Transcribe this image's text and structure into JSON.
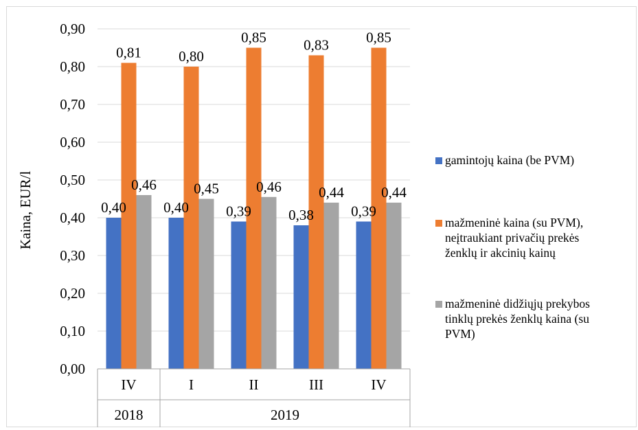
{
  "chart_data": {
    "type": "bar",
    "ylabel": "Kaina, EUR/l",
    "ylim": [
      0,
      0.9
    ],
    "ytick_step": 0.1,
    "ytick_labels": [
      "0,00",
      "0,10",
      "0,20",
      "0,30",
      "0,40",
      "0,50",
      "0,60",
      "0,70",
      "0,80",
      "0,90"
    ],
    "grid": true,
    "legend_position": "right",
    "categories": [
      "IV",
      "I",
      "II",
      "III",
      "IV"
    ],
    "year_groups": [
      {
        "label": "2018",
        "span": 1
      },
      {
        "label": "2019",
        "span": 4
      }
    ],
    "series": [
      {
        "name": "gamintojų kaina (be PVM)",
        "color": "#4472c4",
        "values": [
          0.4,
          0.4,
          0.39,
          0.38,
          0.39
        ],
        "labels": [
          "0,40",
          "0,40",
          "0,39",
          "0,38",
          "0,39"
        ]
      },
      {
        "name": "mažmeninė kaina (su PVM), neįtraukiant privačių prekės ženklų ir akcinių kainų",
        "color": "#ed7d31",
        "values": [
          0.81,
          0.8,
          0.85,
          0.83,
          0.85
        ],
        "labels": [
          "0,81",
          "0,80",
          "0,85",
          "0,83",
          "0,85"
        ]
      },
      {
        "name": "mažmeninė didžiųjų prekybos tinklų prekės ženklų kaina (su PVM)",
        "color": "#a5a5a5",
        "values": [
          0.46,
          0.45,
          0.455,
          0.44,
          0.44
        ],
        "labels": [
          "0,46",
          "0,45",
          "0,46",
          "0,44",
          "0,44"
        ]
      }
    ]
  },
  "legend": {
    "items": [
      {
        "lines": [
          "gamintojų kaina (be PVM)"
        ],
        "color": "#4472c4",
        "icon": "square-swatch"
      },
      {
        "lines": [
          "mažmeninė kaina (su PVM),",
          "neįtraukiant privačių prekės",
          "ženklų ir akcinių kainų"
        ],
        "color": "#ed7d31",
        "icon": "square-swatch"
      },
      {
        "lines": [
          "mažmeninė didžiųjų prekybos",
          "tinklų prekės ženklų kaina (su",
          "PVM)"
        ],
        "color": "#a5a5a5",
        "icon": "square-swatch"
      }
    ]
  }
}
